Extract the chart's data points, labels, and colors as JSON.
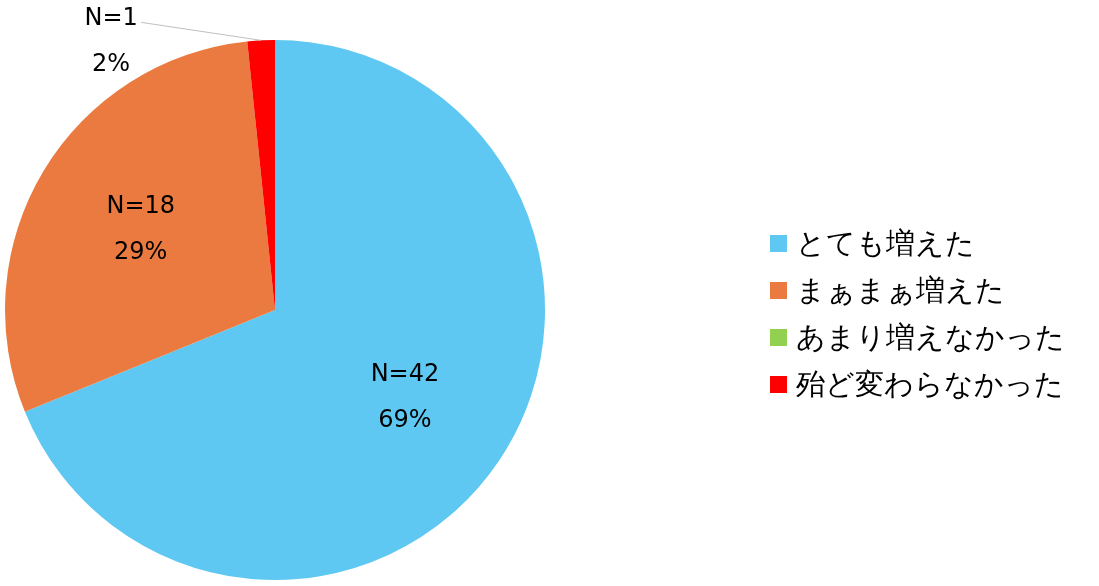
{
  "chart_data": {
    "type": "pie",
    "categories": [
      "とても増えた",
      "まぁまぁ増えた",
      "あまり増えなかった",
      "殆ど変わらなかった"
    ],
    "values": [
      42,
      18,
      0,
      1
    ],
    "colors": [
      "#5ec8f2",
      "#eb7a40",
      "#92d050",
      "#ff0000"
    ],
    "value_labels": [
      "N=42\n69%",
      "N=18\n29%",
      null,
      "N=1\n2%"
    ],
    "legend": "right"
  }
}
